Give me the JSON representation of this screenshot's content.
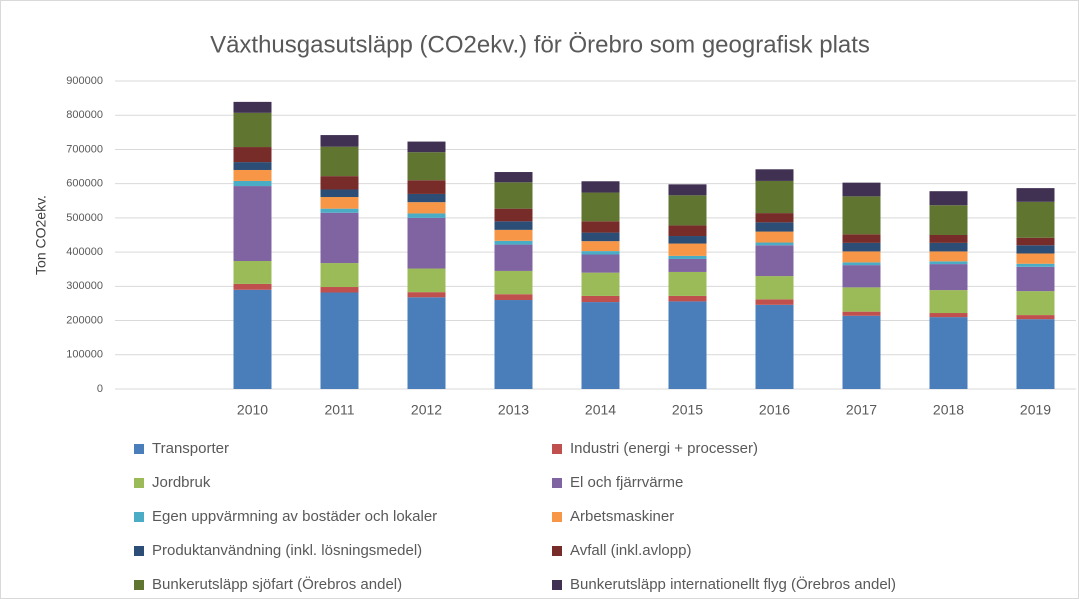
{
  "chart_data": {
    "type": "stacked_bar",
    "title": "Växthusgasutsläpp (CO2ekv.) för Örebro som geografisk plats",
    "y_label": "Ton CO2ekv.",
    "categories": [
      null,
      "2010",
      "2011",
      "2012",
      "2013",
      "2014",
      "2015",
      "2016",
      "2017",
      "2018",
      "2019"
    ],
    "ylim": [
      0,
      900000
    ],
    "yticks": [
      0,
      100000,
      200000,
      300000,
      400000,
      500000,
      600000,
      700000,
      800000,
      900000
    ],
    "grid": true,
    "legend": "bottom",
    "series": [
      {
        "name": "Transporter",
        "color": "#4a7ebb",
        "values": [
          null,
          290000,
          282000,
          268000,
          260000,
          254000,
          256000,
          246000,
          214000,
          210000,
          204000
        ]
      },
      {
        "name": "Industri (energi + processer)",
        "color": "#c0504d",
        "values": [
          null,
          17000,
          16000,
          15000,
          17000,
          18000,
          16000,
          16000,
          12000,
          12000,
          12000
        ]
      },
      {
        "name": "Jordbruk",
        "color": "#9bbb59",
        "values": [
          null,
          67000,
          70000,
          69000,
          68000,
          68000,
          70000,
          68000,
          71000,
          67000,
          70000
        ]
      },
      {
        "name": "El och fjärrvärme",
        "color": "#8064a2",
        "values": [
          null,
          219000,
          147000,
          148000,
          77000,
          53000,
          38000,
          90000,
          65000,
          76000,
          71000
        ]
      },
      {
        "name": "Egen uppvärmning av bostäder och lokaler",
        "color": "#4bacc6",
        "values": [
          null,
          15000,
          12000,
          13000,
          11000,
          10000,
          9000,
          8000,
          8000,
          8000,
          9000
        ]
      },
      {
        "name": "Arbetsmaskiner",
        "color": "#f79646",
        "values": [
          null,
          32000,
          34000,
          33000,
          32000,
          29000,
          36000,
          32000,
          32000,
          29000,
          30000
        ]
      },
      {
        "name": "Produktanvändning (inkl. lösningsmedel)",
        "color": "#2c4d75",
        "values": [
          null,
          23000,
          22000,
          24000,
          25000,
          25000,
          22000,
          27000,
          25000,
          25000,
          24000
        ]
      },
      {
        "name": "Avfall (inkl.avlopp)",
        "color": "#772c2a",
        "values": [
          null,
          44000,
          39000,
          40000,
          37000,
          33000,
          31000,
          27000,
          25000,
          23000,
          22000
        ]
      },
      {
        "name": "Bunkerutsläpp sjöfart (Örebros andel)",
        "color": "#5f7530",
        "values": [
          null,
          100000,
          86000,
          82000,
          77000,
          84000,
          88000,
          94000,
          111000,
          87000,
          105000
        ]
      },
      {
        "name": "Bunkerutsläpp internationellt flyg (Örebros andel)",
        "color": "#403152",
        "values": [
          null,
          32000,
          34000,
          31000,
          30000,
          33000,
          32000,
          34000,
          40000,
          41000,
          40000
        ]
      }
    ]
  }
}
